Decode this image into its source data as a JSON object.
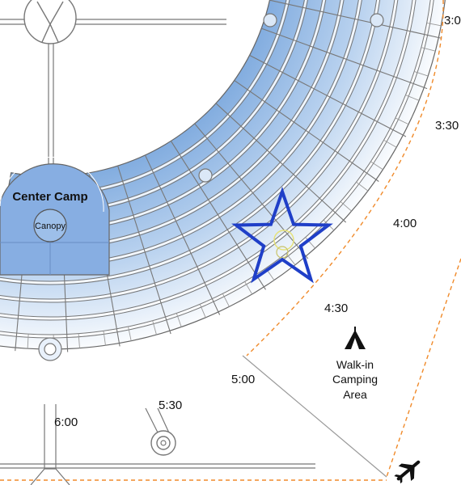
{
  "map": {
    "clock_labels": {
      "t300": "3:0",
      "t330": "3:30",
      "t400": "4:00",
      "t430": "4:30",
      "t500": "5:00",
      "t530": "5:30",
      "t600": "6:00"
    },
    "center_camp": {
      "title": "Center Camp",
      "canopy": "Canopy"
    },
    "walk_in": {
      "line1": "Walk-in",
      "line2": "Camping",
      "line3": "Area"
    },
    "icons": [
      "tent-icon",
      "airplane-icon",
      "star-marker-icon"
    ],
    "colors": {
      "ring_inner": "#7aa7dd",
      "ring_outer": "#ffffff",
      "marker": "#1f3fc8",
      "boundary": "#f08a2a",
      "street": "#666666",
      "tent": "#111111"
    }
  }
}
